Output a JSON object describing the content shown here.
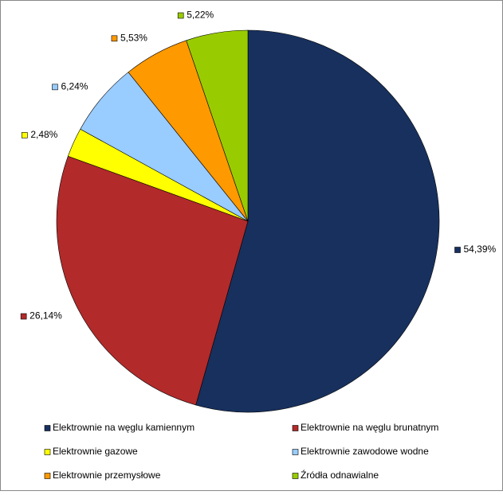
{
  "chart_data": {
    "type": "pie",
    "categories": [
      "Elektrownie na węglu kamiennym",
      "Elektrownie na węglu brunatnym",
      "Elektrownie gazowe",
      "Elektrownie zawodowe wodne",
      "Elektrownie przemysłowe",
      "Źródła odnawialne"
    ],
    "values": [
      54.39,
      26.14,
      2.48,
      6.24,
      5.53,
      5.22
    ],
    "value_labels": [
      "54,39%",
      "26,14%",
      "2,48%",
      "6,24%",
      "5,53%",
      "5,22%"
    ],
    "colors": [
      "#17305e",
      "#b22a2a",
      "#ffff00",
      "#99ccff",
      "#ff9900",
      "#99cc00"
    ],
    "legend": "bottom"
  }
}
